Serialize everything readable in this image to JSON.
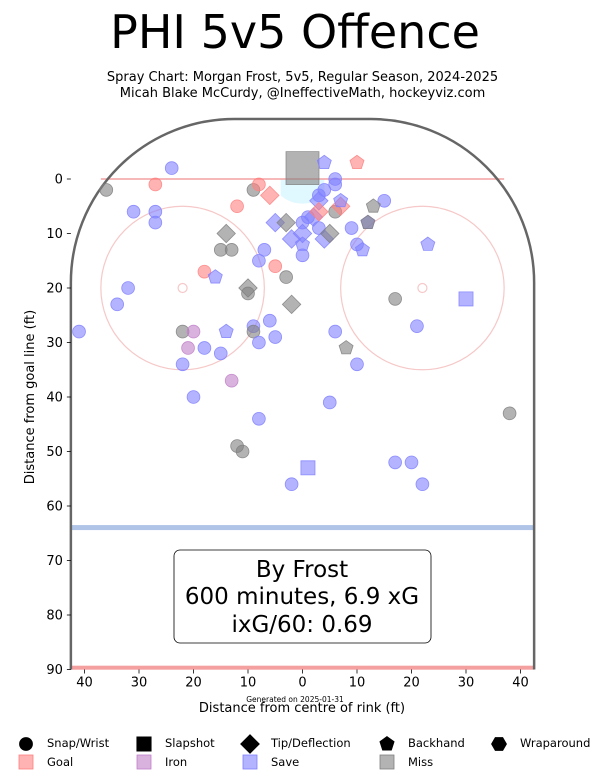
{
  "title": "PHI 5v5 Offence",
  "subtitle_line1": "Spray Chart: Morgan Frost, 5v5, Regular Season, 2024-2025",
  "subtitle_line2": "Micah Blake McCurdy, @IneffectiveMath, hockeyviz.com",
  "generated": "Generated on 2025-01-31",
  "box": {
    "line1": "By Frost",
    "line2": "600 minutes, 6.9 xG",
    "line3": "ixG/60: 0.69"
  },
  "colors": {
    "goal": "#ff8080",
    "iron": "#c080c8",
    "save": "#8080ff",
    "miss": "#808080",
    "rink_outline": "#666666",
    "goal_line": "#f4a0a0",
    "blue_line": "#b0c4e8",
    "faceoff_circle": "#f6c8c8",
    "crease": "#e0f8ff"
  },
  "legend": {
    "shapes": [
      {
        "label": "Snap/Wrist",
        "icon": "circle"
      },
      {
        "label": "Slapshot",
        "icon": "square"
      },
      {
        "label": "Tip/Deflection",
        "icon": "diamond"
      },
      {
        "label": "Backhand",
        "icon": "pentagon"
      },
      {
        "label": "Wraparound",
        "icon": "hexagon"
      }
    ],
    "outcomes": [
      {
        "label": "Goal",
        "key": "goal"
      },
      {
        "label": "Iron",
        "key": "iron"
      },
      {
        "label": "Save",
        "key": "save"
      },
      {
        "label": "Miss",
        "key": "miss"
      }
    ]
  },
  "chart_data": {
    "type": "scatter",
    "xlabel": "Distance from centre of rink (ft)",
    "ylabel": "Distance from goal line (ft)",
    "xlim": [
      42.5,
      -42.5
    ],
    "ylim": [
      -11,
      90
    ],
    "xticks": [
      40,
      30,
      20,
      10,
      0,
      10,
      20,
      30,
      40
    ],
    "yticks": [
      0,
      10,
      20,
      30,
      40,
      50,
      60,
      70,
      80,
      90
    ],
    "points": [
      {
        "x": -36,
        "y": 2,
        "shape": "circle",
        "outcome": "miss"
      },
      {
        "x": -27,
        "y": 1,
        "shape": "circle",
        "outcome": "goal"
      },
      {
        "x": -24,
        "y": -2,
        "shape": "circle",
        "outcome": "save"
      },
      {
        "x": -31,
        "y": 6,
        "shape": "circle",
        "outcome": "save"
      },
      {
        "x": -27,
        "y": 6,
        "shape": "circle",
        "outcome": "save"
      },
      {
        "x": -27,
        "y": 8,
        "shape": "circle",
        "outcome": "save"
      },
      {
        "x": -9,
        "y": 2,
        "shape": "circle",
        "outcome": "miss"
      },
      {
        "x": -8,
        "y": 1,
        "shape": "circle",
        "outcome": "goal"
      },
      {
        "x": -12,
        "y": 5,
        "shape": "circle",
        "outcome": "goal"
      },
      {
        "x": -15,
        "y": 13,
        "shape": "circle",
        "outcome": "miss"
      },
      {
        "x": -13,
        "y": 13,
        "shape": "circle",
        "outcome": "miss"
      },
      {
        "x": -7,
        "y": 13,
        "shape": "circle",
        "outcome": "save"
      },
      {
        "x": -8,
        "y": 15,
        "shape": "circle",
        "outcome": "save"
      },
      {
        "x": -5,
        "y": 16,
        "shape": "circle",
        "outcome": "goal"
      },
      {
        "x": -18,
        "y": 17,
        "shape": "circle",
        "outcome": "goal"
      },
      {
        "x": -3,
        "y": 18,
        "shape": "circle",
        "outcome": "miss"
      },
      {
        "x": -32,
        "y": 20,
        "shape": "circle",
        "outcome": "save"
      },
      {
        "x": -34,
        "y": 23,
        "shape": "circle",
        "outcome": "save"
      },
      {
        "x": -10,
        "y": 21,
        "shape": "circle",
        "outcome": "miss"
      },
      {
        "x": -41,
        "y": 28,
        "shape": "circle",
        "outcome": "save"
      },
      {
        "x": -22,
        "y": 28,
        "shape": "circle",
        "outcome": "miss"
      },
      {
        "x": -20,
        "y": 28,
        "shape": "circle",
        "outcome": "iron"
      },
      {
        "x": -21,
        "y": 31,
        "shape": "circle",
        "outcome": "iron"
      },
      {
        "x": -18,
        "y": 31,
        "shape": "circle",
        "outcome": "save"
      },
      {
        "x": -15,
        "y": 32,
        "shape": "circle",
        "outcome": "save"
      },
      {
        "x": -9,
        "y": 27,
        "shape": "circle",
        "outcome": "save"
      },
      {
        "x": -9,
        "y": 28,
        "shape": "circle",
        "outcome": "miss"
      },
      {
        "x": -6,
        "y": 26,
        "shape": "circle",
        "outcome": "save"
      },
      {
        "x": -5,
        "y": 29,
        "shape": "circle",
        "outcome": "save"
      },
      {
        "x": -8,
        "y": 30,
        "shape": "circle",
        "outcome": "save"
      },
      {
        "x": -22,
        "y": 34,
        "shape": "circle",
        "outcome": "save"
      },
      {
        "x": -13,
        "y": 37,
        "shape": "circle",
        "outcome": "iron"
      },
      {
        "x": -20,
        "y": 40,
        "shape": "circle",
        "outcome": "save"
      },
      {
        "x": -8,
        "y": 44,
        "shape": "circle",
        "outcome": "save"
      },
      {
        "x": -12,
        "y": 49,
        "shape": "circle",
        "outcome": "miss"
      },
      {
        "x": -11,
        "y": 50,
        "shape": "circle",
        "outcome": "miss"
      },
      {
        "x": -2,
        "y": 56,
        "shape": "circle",
        "outcome": "save"
      },
      {
        "x": 0,
        "y": 14,
        "shape": "circle",
        "outcome": "save"
      },
      {
        "x": 0,
        "y": 8,
        "shape": "circle",
        "outcome": "save"
      },
      {
        "x": 1,
        "y": 7,
        "shape": "circle",
        "outcome": "save"
      },
      {
        "x": 3,
        "y": 3,
        "shape": "circle",
        "outcome": "save"
      },
      {
        "x": 4,
        "y": 2,
        "shape": "circle",
        "outcome": "save"
      },
      {
        "x": 6,
        "y": 0,
        "shape": "circle",
        "outcome": "save"
      },
      {
        "x": 6,
        "y": 1,
        "shape": "circle",
        "outcome": "save"
      },
      {
        "x": 3,
        "y": 9,
        "shape": "circle",
        "outcome": "save"
      },
      {
        "x": 6,
        "y": 6,
        "shape": "circle",
        "outcome": "miss"
      },
      {
        "x": 9,
        "y": 9,
        "shape": "circle",
        "outcome": "save"
      },
      {
        "x": 10,
        "y": 12,
        "shape": "circle",
        "outcome": "save"
      },
      {
        "x": 15,
        "y": 4,
        "shape": "circle",
        "outcome": "save"
      },
      {
        "x": 6,
        "y": 28,
        "shape": "circle",
        "outcome": "save"
      },
      {
        "x": 10,
        "y": 34,
        "shape": "circle",
        "outcome": "save"
      },
      {
        "x": 5,
        "y": 41,
        "shape": "circle",
        "outcome": "save"
      },
      {
        "x": 17,
        "y": 22,
        "shape": "circle",
        "outcome": "miss"
      },
      {
        "x": 21,
        "y": 27,
        "shape": "circle",
        "outcome": "save"
      },
      {
        "x": 17,
        "y": 52,
        "shape": "circle",
        "outcome": "save"
      },
      {
        "x": 20,
        "y": 52,
        "shape": "circle",
        "outcome": "save"
      },
      {
        "x": 22,
        "y": 56,
        "shape": "circle",
        "outcome": "save"
      },
      {
        "x": 38,
        "y": 43,
        "shape": "circle",
        "outcome": "miss"
      },
      {
        "x": 0,
        "y": -2,
        "shape": "square",
        "outcome": "miss"
      },
      {
        "x": 1,
        "y": 53,
        "shape": "square",
        "outcome": "save"
      },
      {
        "x": 30,
        "y": 22,
        "shape": "square",
        "outcome": "save"
      },
      {
        "x": -14,
        "y": 10,
        "shape": "diamond",
        "outcome": "miss"
      },
      {
        "x": -6,
        "y": 3,
        "shape": "diamond",
        "outcome": "goal"
      },
      {
        "x": -5,
        "y": 8,
        "shape": "diamond",
        "outcome": "save"
      },
      {
        "x": -3,
        "y": 8,
        "shape": "diamond",
        "outcome": "miss"
      },
      {
        "x": -2,
        "y": 11,
        "shape": "diamond",
        "outcome": "save"
      },
      {
        "x": 0,
        "y": 10,
        "shape": "diamond",
        "outcome": "save"
      },
      {
        "x": 2,
        "y": 7,
        "shape": "diamond",
        "outcome": "save"
      },
      {
        "x": 3,
        "y": 4,
        "shape": "diamond",
        "outcome": "save"
      },
      {
        "x": 3,
        "y": 6,
        "shape": "diamond",
        "outcome": "goal"
      },
      {
        "x": 4,
        "y": 11,
        "shape": "diamond",
        "outcome": "save"
      },
      {
        "x": 5,
        "y": 10,
        "shape": "diamond",
        "outcome": "miss"
      },
      {
        "x": 7,
        "y": 5,
        "shape": "diamond",
        "outcome": "goal"
      },
      {
        "x": -10,
        "y": 20,
        "shape": "diamond",
        "outcome": "miss"
      },
      {
        "x": -2,
        "y": 23,
        "shape": "diamond",
        "outcome": "miss"
      },
      {
        "x": 4,
        "y": -3,
        "shape": "pentagon",
        "outcome": "save"
      },
      {
        "x": 10,
        "y": -3,
        "shape": "pentagon",
        "outcome": "goal"
      },
      {
        "x": 7,
        "y": 4,
        "shape": "pentagon",
        "outcome": "save"
      },
      {
        "x": 12,
        "y": 8,
        "shape": "pentagon",
        "outcome": "save"
      },
      {
        "x": 12,
        "y": 8,
        "shape": "pentagon",
        "outcome": "miss"
      },
      {
        "x": 13,
        "y": 5,
        "shape": "pentagon",
        "outcome": "miss"
      },
      {
        "x": 0,
        "y": 12,
        "shape": "pentagon",
        "outcome": "save"
      },
      {
        "x": 11,
        "y": 13,
        "shape": "pentagon",
        "outcome": "save"
      },
      {
        "x": 23,
        "y": 12,
        "shape": "pentagon",
        "outcome": "save"
      },
      {
        "x": -16,
        "y": 18,
        "shape": "pentagon",
        "outcome": "save"
      },
      {
        "x": -14,
        "y": 28,
        "shape": "pentagon",
        "outcome": "save"
      },
      {
        "x": 8,
        "y": 31,
        "shape": "pentagon",
        "outcome": "miss"
      }
    ]
  }
}
